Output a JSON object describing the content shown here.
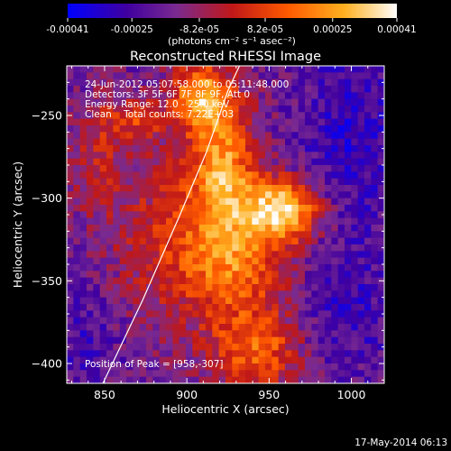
{
  "chart_data": {
    "type": "heatmap",
    "title": "Reconstructed RHESSI Image",
    "xlabel": "Heliocentric X (arcsec)",
    "ylabel": "Heliocentric Y (arcsec)",
    "xlim": [
      827,
      1020
    ],
    "ylim": [
      -412,
      -220
    ],
    "x_ticks": [
      850,
      900,
      950,
      1000
    ],
    "x_tick_labels": [
      "850",
      "900",
      "950",
      "1000"
    ],
    "y_ticks": [
      -250,
      -300,
      -350,
      -400
    ],
    "y_tick_labels": [
      "−250",
      "−300",
      "−350",
      "−400"
    ],
    "grid": false,
    "colorbar": {
      "position": "top",
      "min": -0.00041,
      "max": 0.00041,
      "tick_values": [
        -0.00041,
        -0.00025,
        -8.2e-05,
        8.2e-05,
        0.00025,
        0.00041
      ],
      "tick_labels": [
        "-0.00041",
        "-0.00025",
        "-8.2e-05",
        "8.2e-05",
        "0.00025",
        "0.00041"
      ],
      "unit_label": "(photons cm⁻² s⁻¹ asec⁻²)",
      "colormap": [
        "#0000ff",
        "#4000a0",
        "#7a2a90",
        "#c01818",
        "#ff5a00",
        "#ffb020",
        "#ffffff"
      ]
    },
    "annotations": [
      "24-Jun-2012 05:07:58.000 to 05:11:48.000",
      "Detectors: 3F 5F 6F 7F 8F 9F, Att 0",
      "Energy Range: 12.0 - 25.0 keV",
      "Clean    Total counts: 7.22E+03",
      "Position of Peak = [958,-307]"
    ],
    "peak": {
      "x": 958,
      "y": -307
    },
    "limb_line": [
      {
        "x": 849,
        "y": -412
      },
      {
        "x": 873,
        "y": -362
      },
      {
        "x": 895,
        "y": -312
      },
      {
        "x": 912,
        "y": -272
      },
      {
        "x": 925,
        "y": -235
      },
      {
        "x": 932,
        "y": -220
      }
    ]
  },
  "footer": {
    "timestamp": "17-May-2014 06:13"
  },
  "colors": {
    "background": "#000000",
    "foreground": "#ffffff"
  }
}
